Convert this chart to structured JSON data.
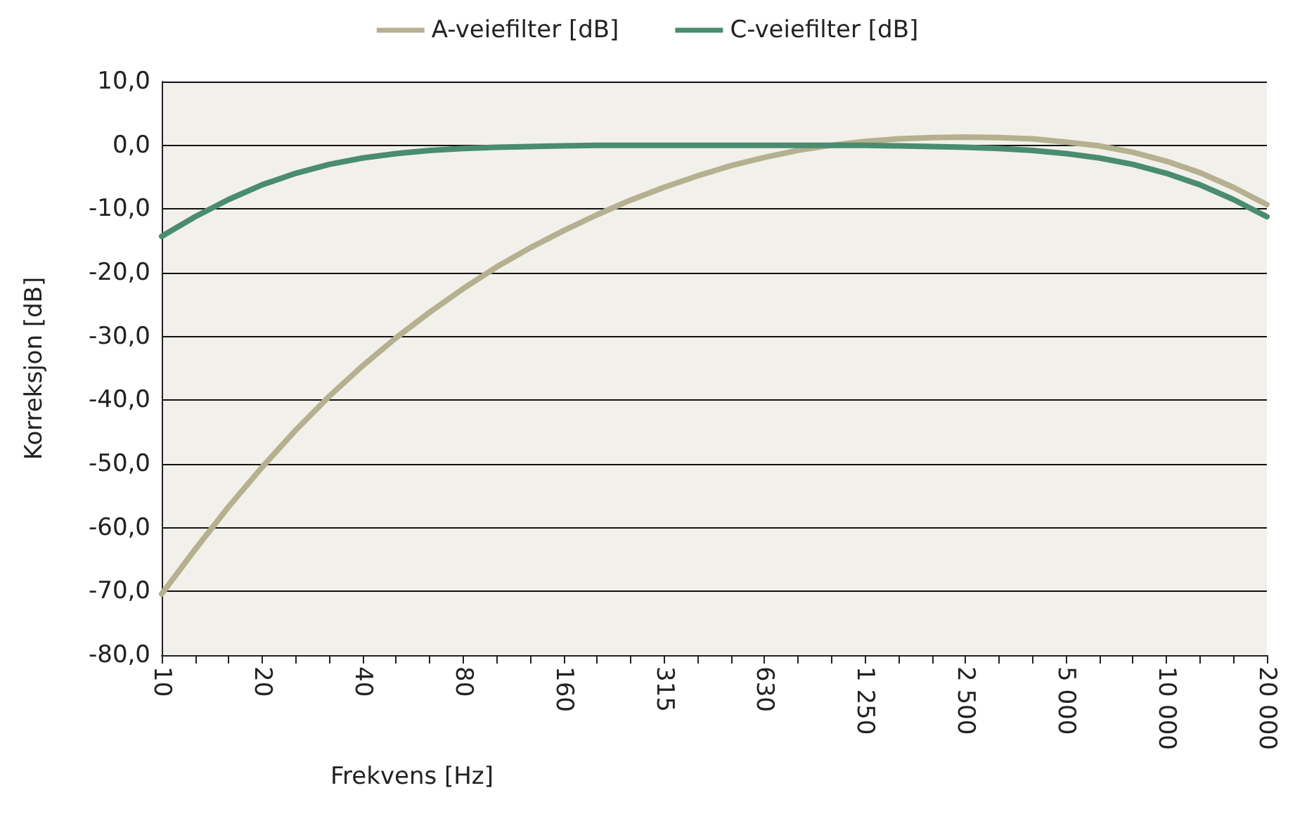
{
  "chart_data": {
    "type": "line",
    "xlabel": "Frekvens [Hz]",
    "ylabel": "Korreksjon [dB]",
    "categories": [
      "10",
      null,
      null,
      "20",
      null,
      null,
      "40",
      null,
      null,
      "80",
      null,
      null,
      "160",
      null,
      null,
      "315",
      null,
      null,
      "630",
      null,
      null,
      "1 250",
      null,
      null,
      "2 500",
      null,
      null,
      "5 000",
      null,
      null,
      "10 000",
      null,
      null,
      "20 000"
    ],
    "series": [
      {
        "name": "A-veiefilter [dB]",
        "color": "#b5b08f",
        "values": [
          -70.4,
          -63.4,
          -56.7,
          -50.5,
          -44.7,
          -39.4,
          -34.6,
          -30.2,
          -26.2,
          -22.5,
          -19.1,
          -16.1,
          -13.4,
          -10.9,
          -8.6,
          -6.6,
          -4.8,
          -3.2,
          -1.9,
          -0.8,
          0,
          0.6,
          1.0,
          1.2,
          1.3,
          1.2,
          1.0,
          0.5,
          -0.1,
          -1.1,
          -2.5,
          -4.3,
          -6.6,
          -9.3
        ]
      },
      {
        "name": "C-veiefilter [dB]",
        "color": "#4a8c70",
        "values": [
          -14.3,
          -11.2,
          -8.5,
          -6.2,
          -4.4,
          -3.0,
          -2.0,
          -1.3,
          -0.8,
          -0.5,
          -0.3,
          -0.2,
          -0.1,
          0,
          0,
          0,
          0,
          0,
          0,
          0,
          0,
          0,
          -0.1,
          -0.2,
          -0.3,
          -0.5,
          -0.8,
          -1.3,
          -2.0,
          -3.0,
          -4.4,
          -6.2,
          -8.5,
          -11.2
        ]
      }
    ],
    "ylim": [
      -80,
      10
    ],
    "yticks": [
      {
        "value": -80,
        "label": "-80,0"
      },
      {
        "value": -70,
        "label": "-70,0"
      },
      {
        "value": -60,
        "label": "-60,0"
      },
      {
        "value": -50,
        "label": "-50,0"
      },
      {
        "value": -40,
        "label": "-40,0"
      },
      {
        "value": -30,
        "label": "-30,0"
      },
      {
        "value": -20,
        "label": "-20,0"
      },
      {
        "value": -10,
        "label": "-10,0"
      },
      {
        "value": 0,
        "label": "0,0"
      },
      {
        "value": 10,
        "label": "10,0"
      }
    ],
    "grid": "y",
    "legend": "top",
    "marker": "none",
    "line_style": "solid"
  }
}
